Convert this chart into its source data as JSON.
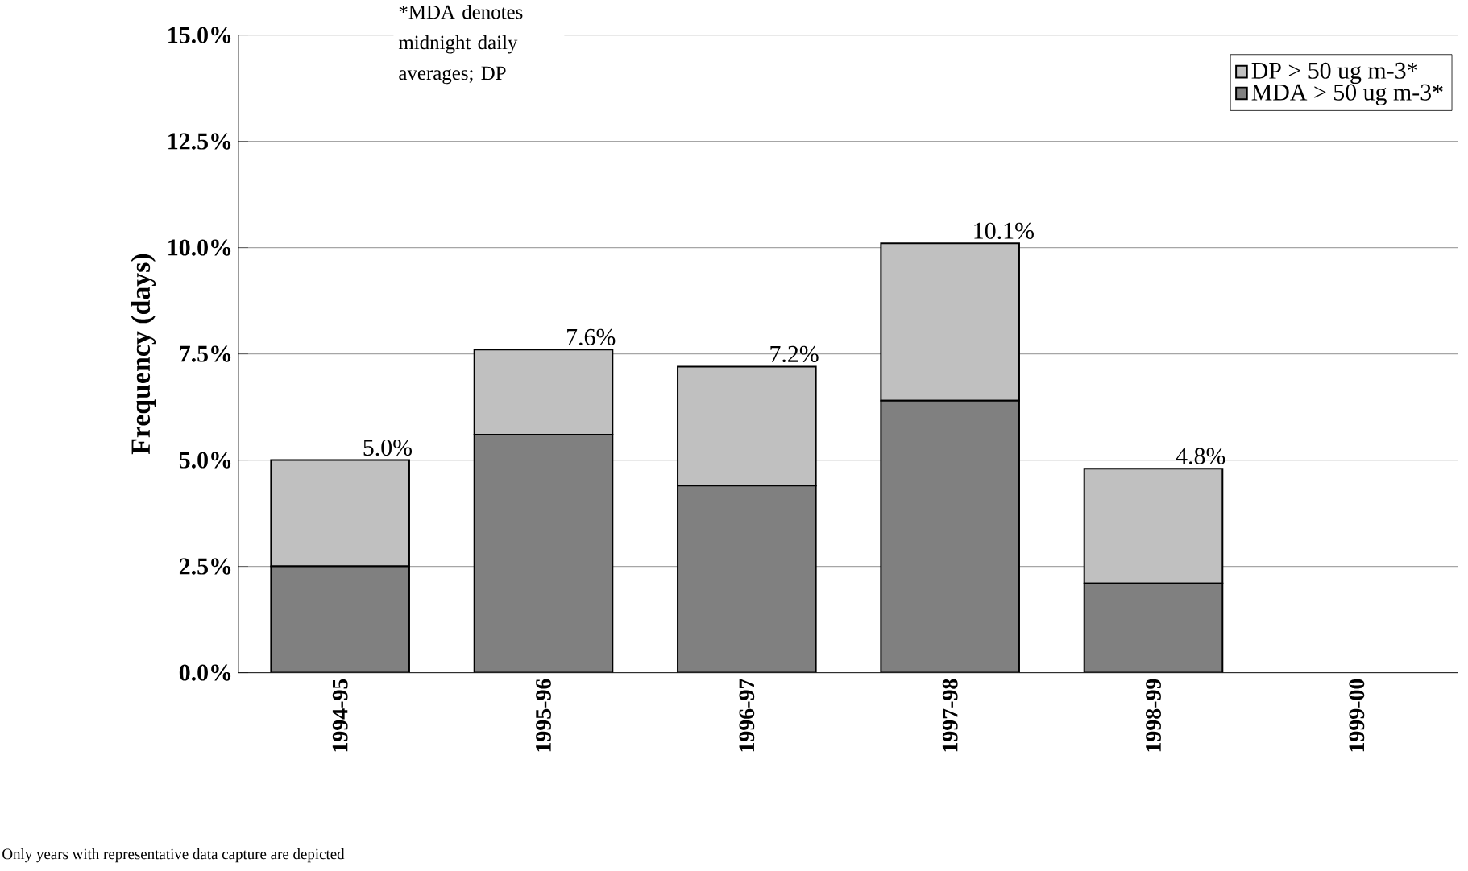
{
  "chart_data": {
    "type": "bar",
    "stacked": true,
    "ylabel": "Frequency (days)",
    "categories": [
      "1994-95",
      "1995-96",
      "1996-97",
      "1997-98",
      "1998-99",
      "1999-00"
    ],
    "series": [
      {
        "name": "MDA > 50 ug m-3*",
        "color": "#808080",
        "values": [
          2.5,
          5.6,
          4.4,
          6.4,
          2.1,
          null
        ]
      },
      {
        "name": "DP > 50 ug m-3*",
        "color": "#c0c0c0",
        "values": [
          2.5,
          2.0,
          2.8,
          3.7,
          2.7,
          null
        ]
      }
    ],
    "totals": [
      "5.0%",
      "7.6%",
      "7.2%",
      "10.1%",
      "4.8%",
      null
    ],
    "ylim": [
      0,
      15
    ],
    "yticks": [
      {
        "value": 0,
        "label": "0.0%"
      },
      {
        "value": 2.5,
        "label": "2.5%"
      },
      {
        "value": 5,
        "label": "5.0%"
      },
      {
        "value": 7.5,
        "label": "7.5%"
      },
      {
        "value": 10,
        "label": "10.0%"
      },
      {
        "value": 12.5,
        "label": "12.5%"
      },
      {
        "value": 15,
        "label": "15.0%"
      }
    ],
    "grid": "y",
    "legend": "top right",
    "annotations": [
      "*MDA denotes midnight daily averages; DP",
      "Only years with representative data capture are depicted"
    ]
  }
}
